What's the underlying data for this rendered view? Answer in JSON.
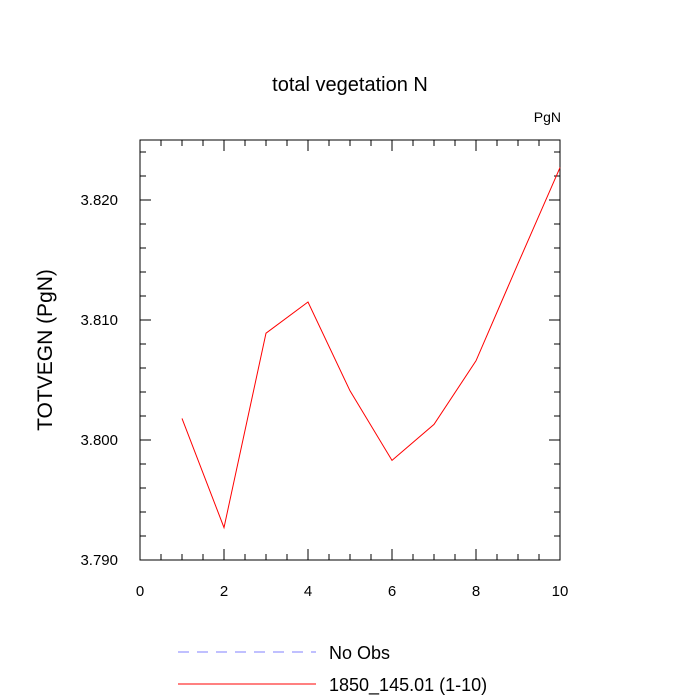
{
  "chart_data": {
    "type": "line",
    "title": "total vegetation N",
    "units_label": "PgN",
    "xlabel": "",
    "ylabel": "TOTVEGN  (PgN)",
    "xlim": [
      0,
      10
    ],
    "ylim": [
      3.79,
      3.825
    ],
    "x_ticks": [
      0,
      2,
      4,
      6,
      8,
      10
    ],
    "x_tick_labels": [
      "0",
      "2",
      "4",
      "6",
      "8",
      "10"
    ],
    "y_ticks": [
      3.79,
      3.8,
      3.81,
      3.82
    ],
    "y_tick_labels": [
      "3.790",
      "3.800",
      "3.810",
      "3.820"
    ],
    "grid": false,
    "legend_position": "bottom",
    "series": [
      {
        "name": "1850_145.01 (1-10)",
        "color": "#ff0000",
        "style": "solid",
        "x": [
          1,
          2,
          3,
          4,
          5,
          6,
          7,
          8,
          9,
          10
        ],
        "y": [
          3.8018,
          3.7927,
          3.8089,
          3.8115,
          3.8041,
          3.7983,
          3.8013,
          3.8066,
          3.8147,
          3.8227
        ]
      }
    ],
    "legend": [
      {
        "label": "No Obs",
        "color": "#8080ff",
        "style": "dashed"
      },
      {
        "label": "1850_145.01 (1-10)",
        "color": "#ff0000",
        "style": "solid"
      }
    ]
  }
}
